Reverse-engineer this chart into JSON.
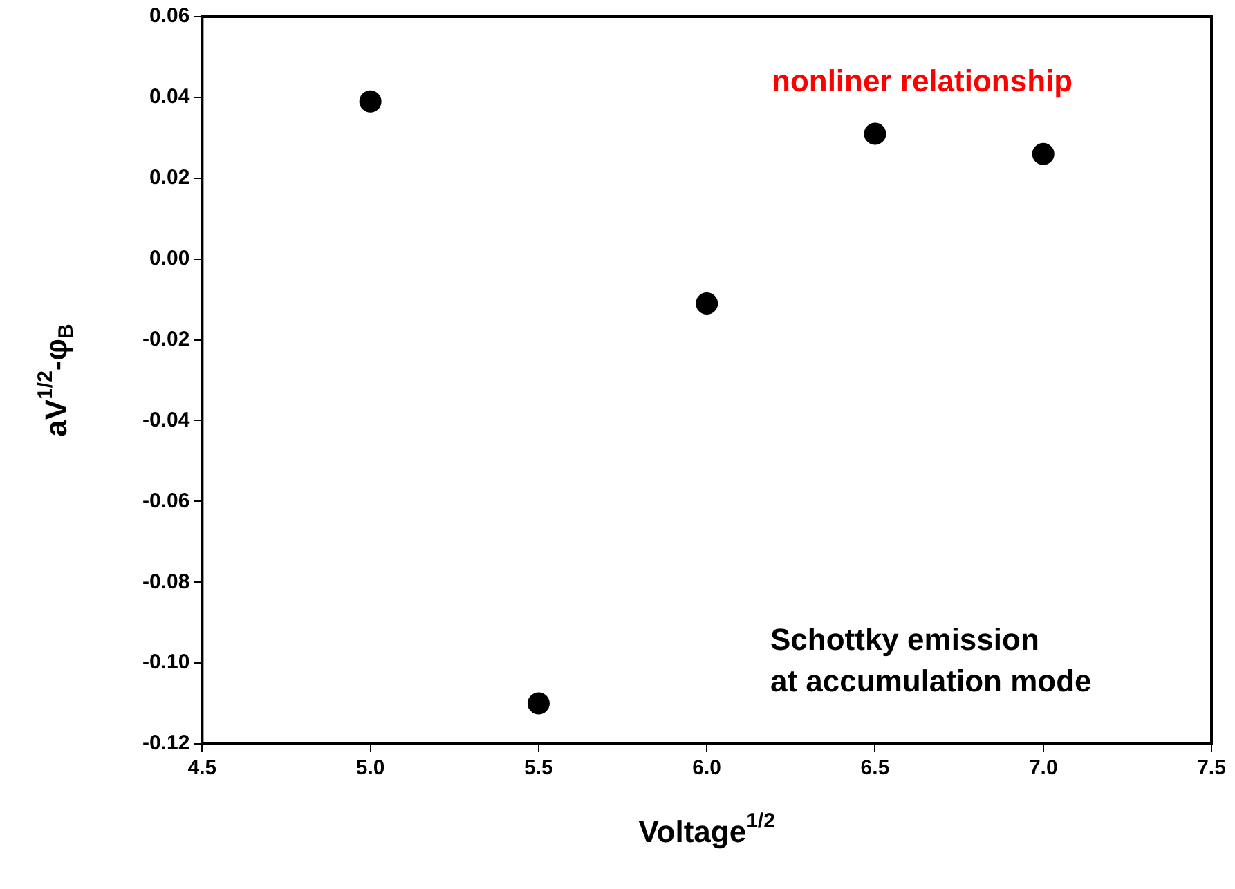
{
  "chart_data": {
    "type": "scatter",
    "xlabel": "Voltage$^{1/2}$",
    "ylabel": "aV$^{1/2}$-φ$_{B}$",
    "x": [
      5.0,
      5.5,
      6.0,
      6.5,
      7.0
    ],
    "series": [
      {
        "color": "#000000",
        "values": [
          0.039,
          -0.11,
          -0.011,
          0.031,
          0.026
        ]
      }
    ],
    "xlim": [
      4.5,
      7.5
    ],
    "xticks": [
      {
        "value": 4.5,
        "label": "4.5"
      },
      {
        "value": 5,
        "label": "5.0"
      },
      {
        "value": 5.5,
        "label": "5.5"
      },
      {
        "value": 6,
        "label": "6.0"
      },
      {
        "value": 6.5,
        "label": "6.5"
      },
      {
        "value": 7,
        "label": "7.0"
      },
      {
        "value": 7.5,
        "label": "7.5"
      }
    ],
    "ylim": [
      -0.12,
      0.06
    ],
    "yticks": [
      {
        "value": -0.12,
        "label": "-0.12"
      },
      {
        "value": -0.1,
        "label": "-0.10"
      },
      {
        "value": -0.08,
        "label": "-0.08"
      },
      {
        "value": -0.06,
        "label": "-0.06"
      },
      {
        "value": -0.04,
        "label": "-0.04"
      },
      {
        "value": -0.02,
        "label": "-0.02"
      },
      {
        "value": 0,
        "label": "0.00"
      },
      {
        "value": 0.02,
        "label": "0.02"
      },
      {
        "value": 0.04,
        "label": "0.04"
      },
      {
        "value": 0.06,
        "label": "0.06"
      }
    ],
    "annotations": [
      "nonliner relationship",
      "Schottky emission\nat accumulation mode"
    ],
    "marker": "circle",
    "grid": false,
    "legend": false
  }
}
